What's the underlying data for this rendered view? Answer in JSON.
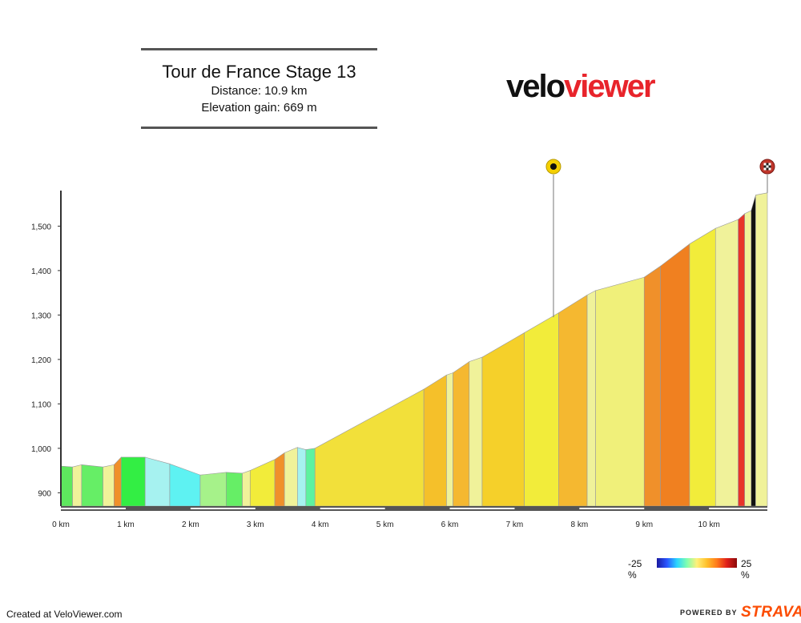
{
  "header": {
    "title": "Tour de France Stage 13",
    "distance": "Distance: 10.9 km",
    "elevation_gain": "Elevation gain: 669 m"
  },
  "logo": {
    "part1": "velo",
    "part2": "viewer"
  },
  "legend": {
    "min_label": "-25 %",
    "max_label": "25 %"
  },
  "footer": {
    "created": "Created at VeloViewer.com",
    "powered_by": "POWERED BY",
    "strava": "STRAVA"
  },
  "colors": {
    "strava_orange": "#fc4c02",
    "veloviewer_red": "#e8242b"
  },
  "icons": {
    "summit_marker": "kom-marker-icon",
    "finish_marker": "checkered-flag-icon"
  },
  "chart_data": {
    "type": "area",
    "title": "",
    "xlabel": "",
    "ylabel": "",
    "xlim": [
      0,
      10.9
    ],
    "ylim": [
      870,
      1580
    ],
    "x_ticks": [
      0,
      1,
      2,
      3,
      4,
      5,
      6,
      7,
      8,
      9,
      10
    ],
    "x_tick_labels": [
      "0 km",
      "1 km",
      "2 km",
      "3 km",
      "4 km",
      "5 km",
      "6 km",
      "7 km",
      "8 km",
      "9 km",
      "10 km"
    ],
    "y_ticks": [
      900,
      1000,
      1100,
      1200,
      1300,
      1400,
      1500
    ],
    "y_tick_labels": [
      "900",
      "1,000",
      "1,100",
      "1,200",
      "1,300",
      "1,400",
      "1,500"
    ],
    "markers": [
      {
        "x": 7.6,
        "elevation": 1295,
        "type": "summit"
      },
      {
        "x": 10.9,
        "elevation": 1575,
        "type": "finish"
      }
    ],
    "profile": [
      {
        "x": 0.0,
        "elevation": 960,
        "color": "#5ee85e"
      },
      {
        "x": 0.18,
        "elevation": 958,
        "color": "#f0f29a"
      },
      {
        "x": 0.32,
        "elevation": 963,
        "color": "#66ee66"
      },
      {
        "x": 0.65,
        "elevation": 958,
        "color": "#f0f29a"
      },
      {
        "x": 0.82,
        "elevation": 963,
        "color": "#f0902a"
      },
      {
        "x": 0.93,
        "elevation": 980,
        "color": "#33ee44"
      },
      {
        "x": 1.3,
        "elevation": 980,
        "color": "#a6f2f0"
      },
      {
        "x": 1.68,
        "elevation": 965,
        "color": "#5ef2f2"
      },
      {
        "x": 2.15,
        "elevation": 940,
        "color": "#a6f28a"
      },
      {
        "x": 2.55,
        "elevation": 946,
        "color": "#66ee66"
      },
      {
        "x": 2.8,
        "elevation": 944,
        "color": "#f0f29a"
      },
      {
        "x": 2.92,
        "elevation": 950,
        "color": "#f2ec3a"
      },
      {
        "x": 3.3,
        "elevation": 975,
        "color": "#f0902a"
      },
      {
        "x": 3.45,
        "elevation": 990,
        "color": "#f0f29a"
      },
      {
        "x": 3.65,
        "elevation": 1002,
        "color": "#a6f2f0"
      },
      {
        "x": 3.78,
        "elevation": 997,
        "color": "#5ef2a0"
      },
      {
        "x": 3.92,
        "elevation": 1000,
        "color": "#f2e03a"
      },
      {
        "x": 5.6,
        "elevation": 1133,
        "color": "#f5c02a"
      },
      {
        "x": 5.95,
        "elevation": 1165,
        "color": "#f0f29a"
      },
      {
        "x": 6.05,
        "elevation": 1170,
        "color": "#f5b830"
      },
      {
        "x": 6.3,
        "elevation": 1195,
        "color": "#f0f29a"
      },
      {
        "x": 6.5,
        "elevation": 1205,
        "color": "#f5d02a"
      },
      {
        "x": 7.15,
        "elevation": 1260,
        "color": "#f2ec3a"
      },
      {
        "x": 7.68,
        "elevation": 1305,
        "color": "#f5b830"
      },
      {
        "x": 8.12,
        "elevation": 1345,
        "color": "#f0f29a"
      },
      {
        "x": 8.25,
        "elevation": 1355,
        "color": "#f0f07a"
      },
      {
        "x": 9.0,
        "elevation": 1385,
        "color": "#f0902a"
      },
      {
        "x": 9.25,
        "elevation": 1410,
        "color": "#f08020"
      },
      {
        "x": 9.7,
        "elevation": 1460,
        "color": "#f2ec3a"
      },
      {
        "x": 10.1,
        "elevation": 1495,
        "color": "#f0f29a"
      },
      {
        "x": 10.45,
        "elevation": 1515,
        "color": "#e8342a"
      },
      {
        "x": 10.55,
        "elevation": 1528,
        "color": "#f0f29a"
      },
      {
        "x": 10.65,
        "elevation": 1535,
        "color": "#111111"
      },
      {
        "x": 10.72,
        "elevation": 1570,
        "color": "#f0f29a"
      },
      {
        "x": 10.9,
        "elevation": 1575,
        "color": null
      }
    ]
  }
}
